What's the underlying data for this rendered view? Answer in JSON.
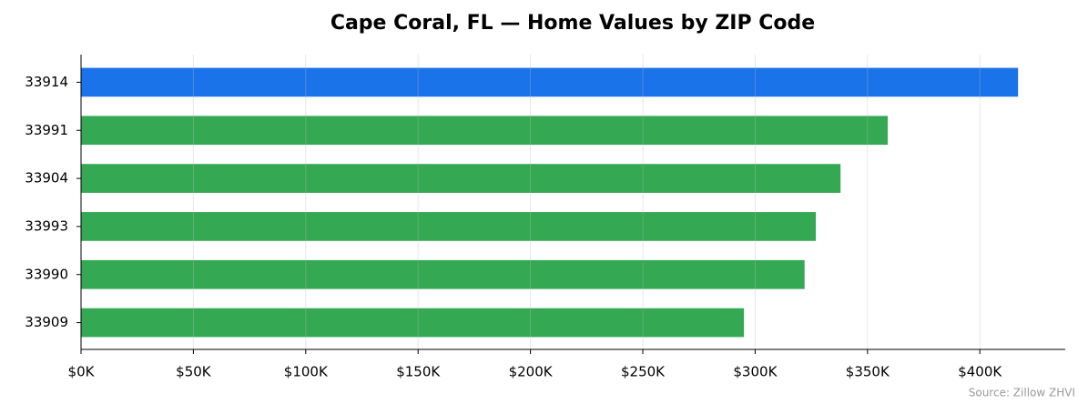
{
  "chart_data": {
    "type": "barh",
    "title": "Cape Coral, FL — Home Values by ZIP Code",
    "categories": [
      "33914",
      "33991",
      "33904",
      "33993",
      "33990",
      "33909"
    ],
    "values": [
      417000,
      359000,
      338000,
      327000,
      322000,
      295000
    ],
    "colors": [
      "#1a73e8",
      "#34a853",
      "#34a853",
      "#34a853",
      "#34a853",
      "#34a853"
    ],
    "xlim": [
      0,
      438000
    ],
    "xticks": [
      {
        "value": 0,
        "label": "$0K"
      },
      {
        "value": 50000,
        "label": "$50K"
      },
      {
        "value": 100000,
        "label": "$100K"
      },
      {
        "value": 150000,
        "label": "$150K"
      },
      {
        "value": 200000,
        "label": "$200K"
      },
      {
        "value": 250000,
        "label": "$250K"
      },
      {
        "value": 300000,
        "label": "$300K"
      },
      {
        "value": 350000,
        "label": "$350K"
      },
      {
        "value": 400000,
        "label": "$400K"
      }
    ],
    "grid": true,
    "source": "Source: Zillow ZHVI"
  }
}
